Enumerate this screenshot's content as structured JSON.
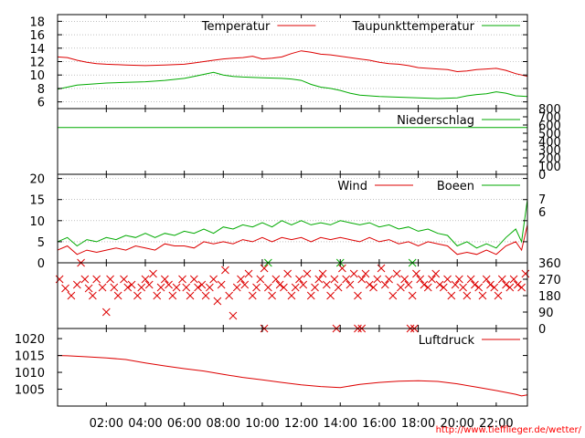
{
  "footer": {
    "url": "http://www.tiefflieger.de/wetter/"
  },
  "time_axis": {
    "range_hours": [
      -0.5,
      23.6
    ],
    "ticks": [
      2,
      4,
      6,
      8,
      10,
      12,
      14,
      16,
      18,
      20,
      22
    ],
    "tick_labels": [
      "02:00",
      "04:00",
      "06:00",
      "08:00",
      "10:00",
      "12:00",
      "14:00",
      "16:00",
      "18:00",
      "20:00",
      "22:00"
    ]
  },
  "colors": {
    "red": "#dd0000",
    "green": "#00aa00",
    "grid": "#999999",
    "axis": "#000000"
  },
  "chart_data": [
    {
      "type": "line",
      "panel": "temperature",
      "ylim": [
        5,
        19
      ],
      "yticks": [
        6,
        8,
        10,
        12,
        14,
        16,
        18
      ],
      "grid": true,
      "legend": "top-right",
      "series": [
        {
          "name": "Temperatur",
          "color": "#dd0000",
          "x": [
            -0.5,
            0,
            0.5,
            1,
            1.5,
            2,
            3,
            4,
            5,
            6,
            6.5,
            7,
            7.5,
            8,
            8.5,
            9,
            9.5,
            10,
            10.5,
            11,
            11.5,
            12,
            12.5,
            13,
            13.5,
            14,
            14.5,
            15,
            15.5,
            16,
            16.5,
            17,
            17.5,
            18,
            18.5,
            19,
            19.5,
            20,
            20.5,
            21,
            21.5,
            22,
            22.5,
            23,
            23.6
          ],
          "y": [
            12.7,
            12.6,
            12.2,
            11.9,
            11.7,
            11.6,
            11.5,
            11.4,
            11.5,
            11.6,
            11.8,
            12.0,
            12.2,
            12.4,
            12.5,
            12.6,
            12.8,
            12.4,
            12.5,
            12.7,
            13.2,
            13.6,
            13.4,
            13.1,
            13.0,
            12.8,
            12.6,
            12.4,
            12.2,
            11.9,
            11.7,
            11.6,
            11.4,
            11.1,
            11.0,
            10.9,
            10.8,
            10.5,
            10.6,
            10.8,
            10.9,
            11.0,
            10.7,
            10.2,
            9.8
          ]
        },
        {
          "name": "Taupunkttemperatur",
          "color": "#00aa00",
          "x": [
            -0.5,
            0,
            0.5,
            1,
            2,
            3,
            4,
            5,
            6,
            6.5,
            7,
            7.5,
            8,
            8.5,
            9,
            10,
            11,
            11.5,
            12,
            12.5,
            13,
            13.5,
            14,
            14.5,
            15,
            16,
            17,
            18,
            19,
            20,
            20.5,
            21,
            21.5,
            22,
            22.5,
            23,
            23.6
          ],
          "y": [
            7.9,
            8.2,
            8.5,
            8.6,
            8.8,
            8.9,
            9.0,
            9.2,
            9.5,
            9.8,
            10.1,
            10.4,
            10.0,
            9.8,
            9.7,
            9.6,
            9.5,
            9.4,
            9.2,
            8.6,
            8.2,
            8.0,
            7.7,
            7.3,
            7.0,
            6.8,
            6.7,
            6.6,
            6.5,
            6.6,
            6.9,
            7.1,
            7.2,
            7.5,
            7.3,
            6.9,
            6.8
          ]
        }
      ]
    },
    {
      "type": "line",
      "panel": "precipitation",
      "ylim": [
        0,
        800
      ],
      "yticks_right": [
        0,
        100,
        200,
        300,
        400,
        500,
        600,
        700,
        800
      ],
      "legend": "top-right",
      "series": [
        {
          "name": "Niederschlag",
          "color": "#00aa00",
          "x": [
            -0.5,
            23.6
          ],
          "y": [
            570,
            570
          ]
        }
      ]
    },
    {
      "type": "line",
      "panel": "wind",
      "ylim": [
        0,
        21
      ],
      "yticks": [
        0,
        5,
        10,
        15,
        20
      ],
      "right_labels": [
        "7",
        "6"
      ],
      "grid": true,
      "legend": "top-right",
      "series": [
        {
          "name": "Wind",
          "color": "#dd0000",
          "x": [
            -0.5,
            0,
            0.5,
            1,
            1.5,
            2,
            2.5,
            3,
            3.5,
            4,
            4.5,
            5,
            5.5,
            6,
            6.5,
            7,
            7.5,
            8,
            8.5,
            9,
            9.5,
            10,
            10.5,
            11,
            11.5,
            12,
            12.5,
            13,
            13.5,
            14,
            14.5,
            15,
            15.5,
            16,
            16.5,
            17,
            17.5,
            18,
            18.5,
            19,
            19.5,
            20,
            20.5,
            21,
            21.5,
            22,
            22.5,
            23,
            23.3,
            23.6
          ],
          "y": [
            3,
            4,
            2,
            3,
            2.5,
            3,
            3.5,
            3,
            4,
            3.5,
            3,
            4.5,
            4,
            4,
            3.5,
            5,
            4.5,
            5,
            4.5,
            5.5,
            5,
            6,
            5,
            6,
            5.5,
            6,
            5,
            6,
            5.5,
            6,
            5.5,
            5,
            6,
            5,
            5.5,
            4.5,
            5,
            4,
            5,
            4.5,
            4,
            2,
            2.5,
            2,
            3,
            2,
            4,
            5,
            3,
            9
          ]
        },
        {
          "name": "Boeen",
          "color": "#00aa00",
          "x": [
            -0.5,
            0,
            0.5,
            1,
            1.5,
            2,
            2.5,
            3,
            3.5,
            4,
            4.5,
            5,
            5.5,
            6,
            6.5,
            7,
            7.5,
            8,
            8.5,
            9,
            9.5,
            10,
            10.5,
            11,
            11.5,
            12,
            12.5,
            13,
            13.5,
            14,
            14.5,
            15,
            15.5,
            16,
            16.5,
            17,
            17.5,
            18,
            18.5,
            19,
            19.5,
            20,
            20.5,
            21,
            21.5,
            22,
            22.5,
            23,
            23.3,
            23.6
          ],
          "y": [
            5,
            6,
            4,
            5.5,
            5,
            6,
            5.5,
            6.5,
            6,
            7,
            6,
            7,
            6.5,
            7.5,
            7,
            8,
            7,
            8.5,
            8,
            9,
            8.5,
            9.5,
            8.5,
            10,
            9,
            10,
            9,
            9.5,
            9,
            10,
            9.5,
            9,
            9.5,
            8.5,
            9,
            8,
            8.5,
            7.5,
            8,
            7,
            6.5,
            4,
            5,
            3.5,
            4.5,
            3.5,
            6,
            8,
            5,
            15
          ]
        }
      ]
    },
    {
      "type": "scatter",
      "panel": "wind_direction",
      "ylim": [
        0,
        360
      ],
      "yticks_right": [
        0,
        90,
        180,
        270,
        360
      ],
      "series": [
        {
          "name": "",
          "color": "#dd0000",
          "marker": "x",
          "points": [
            [
              -0.4,
              270
            ],
            [
              -0.1,
              220
            ],
            [
              0.2,
              180
            ],
            [
              0.5,
              240
            ],
            [
              0.7,
              360
            ],
            [
              0.9,
              270
            ],
            [
              1.1,
              220
            ],
            [
              1.3,
              180
            ],
            [
              1.5,
              270
            ],
            [
              1.8,
              225
            ],
            [
              2.0,
              90
            ],
            [
              2.2,
              270
            ],
            [
              2.4,
              225
            ],
            [
              2.6,
              180
            ],
            [
              2.9,
              270
            ],
            [
              3.1,
              225
            ],
            [
              3.3,
              240
            ],
            [
              3.6,
              180
            ],
            [
              3.8,
              225
            ],
            [
              4.0,
              270
            ],
            [
              4.2,
              240
            ],
            [
              4.4,
              300
            ],
            [
              4.6,
              180
            ],
            [
              4.8,
              225
            ],
            [
              5.0,
              270
            ],
            [
              5.2,
              240
            ],
            [
              5.4,
              180
            ],
            [
              5.6,
              225
            ],
            [
              5.9,
              270
            ],
            [
              6.1,
              225
            ],
            [
              6.3,
              180
            ],
            [
              6.5,
              270
            ],
            [
              6.7,
              225
            ],
            [
              6.9,
              240
            ],
            [
              7.1,
              180
            ],
            [
              7.3,
              225
            ],
            [
              7.5,
              270
            ],
            [
              7.7,
              150
            ],
            [
              7.9,
              240
            ],
            [
              8.1,
              320
            ],
            [
              8.3,
              180
            ],
            [
              8.5,
              70
            ],
            [
              8.7,
              225
            ],
            [
              8.9,
              270
            ],
            [
              9.1,
              240
            ],
            [
              9.3,
              300
            ],
            [
              9.5,
              180
            ],
            [
              9.7,
              225
            ],
            [
              9.9,
              270
            ],
            [
              10.1,
              330
            ],
            [
              10.3,
              225
            ],
            [
              10.5,
              180
            ],
            [
              10.7,
              270
            ],
            [
              10.9,
              240
            ],
            [
              11.1,
              225
            ],
            [
              11.3,
              300
            ],
            [
              11.5,
              180
            ],
            [
              11.7,
              225
            ],
            [
              11.9,
              270
            ],
            [
              12.1,
              240
            ],
            [
              12.3,
              300
            ],
            [
              12.5,
              180
            ],
            [
              12.7,
              225
            ],
            [
              12.9,
              270
            ],
            [
              13.1,
              300
            ],
            [
              13.3,
              240
            ],
            [
              13.5,
              180
            ],
            [
              13.7,
              270
            ],
            [
              13.9,
              225
            ],
            [
              14.1,
              330
            ],
            [
              14.3,
              270
            ],
            [
              14.5,
              240
            ],
            [
              14.7,
              300
            ],
            [
              14.9,
              180
            ],
            [
              15.1,
              270
            ],
            [
              15.3,
              300
            ],
            [
              15.5,
              240
            ],
            [
              15.7,
              225
            ],
            [
              15.9,
              270
            ],
            [
              16.1,
              330
            ],
            [
              16.3,
              240
            ],
            [
              16.5,
              270
            ],
            [
              16.7,
              180
            ],
            [
              16.9,
              300
            ],
            [
              17.1,
              225
            ],
            [
              17.3,
              270
            ],
            [
              17.5,
              240
            ],
            [
              17.7,
              180
            ],
            [
              17.9,
              300
            ],
            [
              18.1,
              270
            ],
            [
              18.3,
              240
            ],
            [
              18.5,
              225
            ],
            [
              18.7,
              270
            ],
            [
              18.9,
              300
            ],
            [
              19.1,
              240
            ],
            [
              19.3,
              225
            ],
            [
              19.5,
              270
            ],
            [
              19.7,
              180
            ],
            [
              19.9,
              240
            ],
            [
              20.1,
              270
            ],
            [
              20.3,
              225
            ],
            [
              20.5,
              180
            ],
            [
              20.7,
              270
            ],
            [
              20.9,
              240
            ],
            [
              21.1,
              225
            ],
            [
              21.3,
              180
            ],
            [
              21.5,
              270
            ],
            [
              21.7,
              240
            ],
            [
              21.9,
              225
            ],
            [
              22.1,
              180
            ],
            [
              22.3,
              270
            ],
            [
              22.5,
              240
            ],
            [
              22.7,
              225
            ],
            [
              22.9,
              270
            ],
            [
              23.1,
              240
            ],
            [
              23.3,
              225
            ],
            [
              23.5,
              300
            ],
            [
              10.1,
              0
            ],
            [
              13.8,
              0
            ],
            [
              14.9,
              0
            ],
            [
              15.1,
              0
            ],
            [
              17.6,
              0
            ],
            [
              17.8,
              0
            ]
          ]
        },
        {
          "name": "",
          "color": "#00aa00",
          "marker": "x",
          "points": [
            [
              10.3,
              360
            ],
            [
              14.0,
              360
            ],
            [
              17.7,
              360
            ]
          ]
        }
      ]
    },
    {
      "type": "line",
      "panel": "pressure",
      "ylim": [
        1000,
        1023
      ],
      "yticks": [
        1005,
        1010,
        1015,
        1020
      ],
      "legend": "top-right",
      "series": [
        {
          "name": "Luftdruck",
          "color": "#dd0000",
          "x": [
            -0.5,
            0,
            1,
            2,
            3,
            4,
            5,
            6,
            7,
            8,
            9,
            10,
            11,
            12,
            13,
            14,
            15,
            16,
            17,
            18,
            19,
            20,
            21,
            22,
            23,
            23.3,
            23.6
          ],
          "y": [
            1015.0,
            1014.9,
            1014.6,
            1014.3,
            1013.8,
            1012.8,
            1011.9,
            1011.1,
            1010.4,
            1009.4,
            1008.5,
            1007.8,
            1007.0,
            1006.3,
            1005.8,
            1005.5,
            1006.4,
            1007.0,
            1007.4,
            1007.5,
            1007.3,
            1006.6,
            1005.6,
            1004.6,
            1003.5,
            1003.0,
            1003.3
          ]
        }
      ]
    }
  ]
}
